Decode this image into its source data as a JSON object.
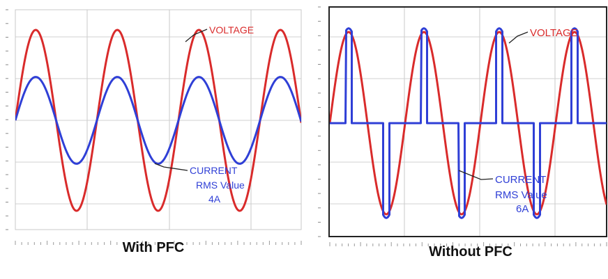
{
  "chart_data": [
    {
      "type": "line",
      "caption": "With PFC",
      "x_cycles": 3.5,
      "ylim": [
        -1,
        1
      ],
      "grid": true,
      "series": [
        {
          "name": "VOLTAGE",
          "color": "#d92b2b",
          "amplitude": 1.0,
          "phase_deg": 0,
          "shape": "sine"
        },
        {
          "name": "CURRENT",
          "color": "#2f3fd6",
          "amplitude": 0.48,
          "phase_deg": 0,
          "shape": "sine"
        }
      ],
      "annotations": [
        {
          "id": "voltage",
          "lines": [
            "VOLTAGE"
          ],
          "color": "#d92b2b"
        },
        {
          "id": "current",
          "lines": [
            "CURRENT",
            "RMS Value",
            "4A"
          ],
          "color": "#2f3fd6"
        }
      ]
    },
    {
      "type": "line",
      "caption": "Without PFC",
      "x_cycles": 3.5,
      "ylim": [
        -1,
        1
      ],
      "grid": true,
      "series": [
        {
          "name": "VOLTAGE",
          "color": "#d92b2b",
          "amplitude": 1.0,
          "phase_deg": 0,
          "shape": "sine"
        },
        {
          "name": "CURRENT",
          "color": "#2f3fd6",
          "amplitude": 1.04,
          "phase_deg": 0,
          "shape": "pulse",
          "pulse_width_deg": 30
        }
      ],
      "annotations": [
        {
          "id": "voltage",
          "lines": [
            "VOLTAGE"
          ],
          "color": "#d92b2b"
        },
        {
          "id": "current",
          "lines": [
            "CURRENT",
            "RMS Value",
            "6A"
          ],
          "color": "#2f3fd6"
        }
      ]
    }
  ]
}
